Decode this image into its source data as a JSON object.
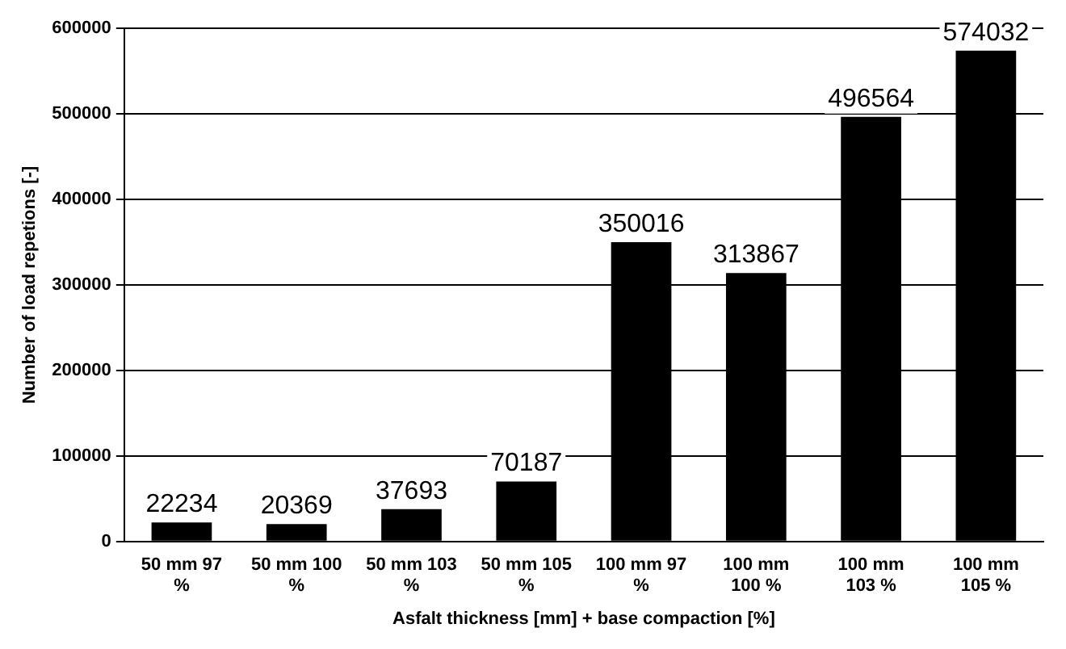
{
  "chart_data": {
    "type": "bar",
    "xlabel": "Asfalt thickness [mm] + base compaction [%]",
    "ylabel": "Number of load repetions [-]",
    "categories": [
      "50 mm 97 %",
      "50 mm 100 %",
      "50 mm 103 %",
      "50 mm 105 %",
      "100 mm 97 %",
      "100 mm 100 %",
      "100 mm 103 %",
      "100 mm 105 %"
    ],
    "values": [
      22234,
      20369,
      37693,
      70187,
      350016,
      313867,
      496564,
      574032
    ],
    "color": "#000000",
    "ylim": [
      0,
      600000
    ],
    "yticks": [
      0,
      100000,
      200000,
      300000,
      400000,
      500000,
      600000
    ],
    "grid": "y",
    "data_labels": true,
    "legend": false
  }
}
